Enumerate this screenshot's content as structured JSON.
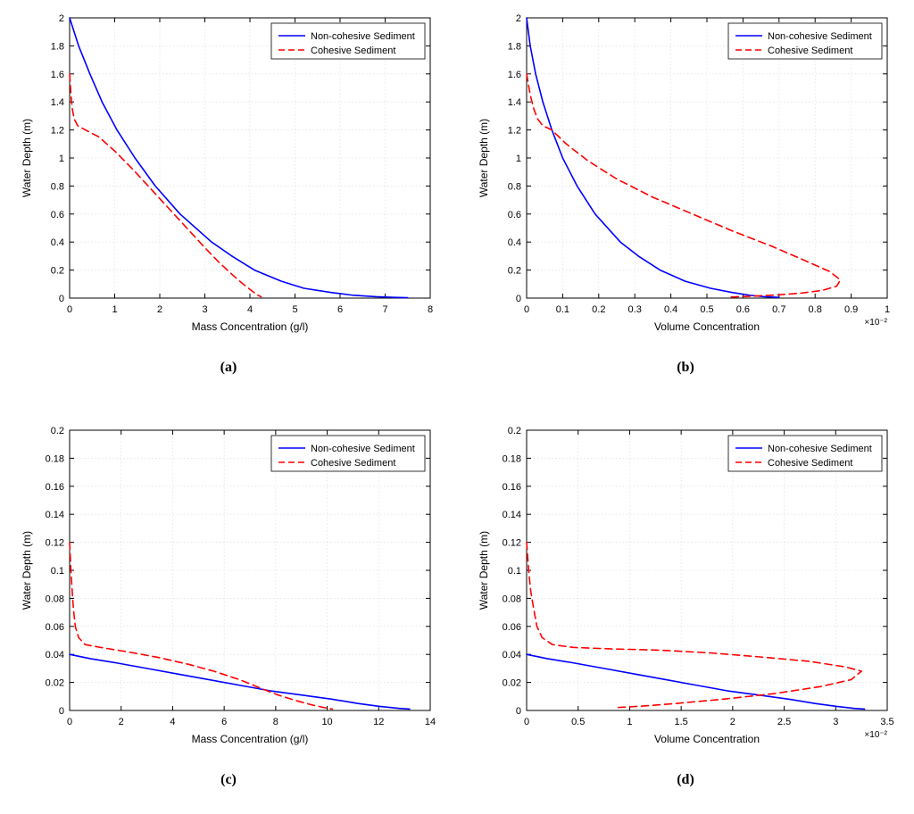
{
  "figure": {
    "background": "#ffffff",
    "panel_bg": "#ffffff",
    "axis_color": "#000000",
    "grid_color": "#d9d9d9",
    "tick_fontsize": 11,
    "label_fontsize": 12,
    "legend_fontsize": 11,
    "series_colors": {
      "noncohesive": "#0000ff",
      "cohesive": "#ff0000"
    },
    "series_styles": {
      "noncohesive": "solid",
      "cohesive": "dashed"
    },
    "legend_labels": {
      "noncohesive": "Non-cohesive Sediment",
      "cohesive": "Cohesive Sediment"
    },
    "line_width": 1.6
  },
  "panels": {
    "a": {
      "caption": "(a)",
      "xlabel": "Mass Concentration (g/l)",
      "ylabel": "Water Depth (m)",
      "xlim": [
        0,
        8
      ],
      "ylim": [
        0,
        2
      ],
      "xticks": [
        0,
        1,
        2,
        3,
        4,
        5,
        6,
        7,
        8
      ],
      "yticks": [
        0,
        0.2,
        0.4,
        0.6,
        0.8,
        1,
        1.2,
        1.4,
        1.6,
        1.8,
        2
      ],
      "exp_note": "",
      "series": {
        "noncohesive": [
          [
            0.0,
            2.0
          ],
          [
            0.2,
            1.8
          ],
          [
            0.45,
            1.6
          ],
          [
            0.72,
            1.4
          ],
          [
            1.05,
            1.2
          ],
          [
            1.45,
            1.0
          ],
          [
            1.9,
            0.8
          ],
          [
            2.45,
            0.6
          ],
          [
            3.15,
            0.4
          ],
          [
            3.6,
            0.3
          ],
          [
            4.1,
            0.2
          ],
          [
            4.7,
            0.12
          ],
          [
            5.2,
            0.07
          ],
          [
            5.8,
            0.04
          ],
          [
            6.3,
            0.02
          ],
          [
            6.8,
            0.01
          ],
          [
            7.2,
            0.005
          ],
          [
            7.5,
            0.003
          ]
        ],
        "cohesive": [
          [
            0.0,
            1.6
          ],
          [
            0.03,
            1.45
          ],
          [
            0.06,
            1.35
          ],
          [
            0.1,
            1.28
          ],
          [
            0.18,
            1.23
          ],
          [
            0.35,
            1.2
          ],
          [
            0.65,
            1.15
          ],
          [
            1.0,
            1.05
          ],
          [
            1.4,
            0.92
          ],
          [
            1.8,
            0.78
          ],
          [
            2.2,
            0.64
          ],
          [
            2.6,
            0.5
          ],
          [
            3.0,
            0.36
          ],
          [
            3.3,
            0.26
          ],
          [
            3.6,
            0.17
          ],
          [
            3.85,
            0.1
          ],
          [
            4.05,
            0.05
          ],
          [
            4.18,
            0.02
          ],
          [
            4.25,
            0.01
          ]
        ]
      }
    },
    "b": {
      "caption": "(b)",
      "xlabel": "Volume Concentration",
      "ylabel": "Water Depth (m)",
      "xlim": [
        0,
        1
      ],
      "ylim": [
        0,
        2
      ],
      "xticks": [
        0,
        0.1,
        0.2,
        0.3,
        0.4,
        0.5,
        0.6,
        0.7,
        0.8,
        0.9,
        1
      ],
      "yticks": [
        0,
        0.2,
        0.4,
        0.6,
        0.8,
        1,
        1.2,
        1.4,
        1.6,
        1.8,
        2
      ],
      "exp_note": "×10⁻²",
      "series": {
        "noncohesive": [
          [
            0.0,
            2.0
          ],
          [
            0.01,
            1.8
          ],
          [
            0.025,
            1.6
          ],
          [
            0.045,
            1.4
          ],
          [
            0.07,
            1.2
          ],
          [
            0.1,
            1.0
          ],
          [
            0.14,
            0.8
          ],
          [
            0.19,
            0.6
          ],
          [
            0.26,
            0.4
          ],
          [
            0.31,
            0.3
          ],
          [
            0.37,
            0.2
          ],
          [
            0.44,
            0.12
          ],
          [
            0.51,
            0.07
          ],
          [
            0.57,
            0.04
          ],
          [
            0.62,
            0.02
          ],
          [
            0.66,
            0.01
          ],
          [
            0.7,
            0.005
          ]
        ],
        "cohesive": [
          [
            0.0,
            1.6
          ],
          [
            0.01,
            1.45
          ],
          [
            0.02,
            1.35
          ],
          [
            0.03,
            1.28
          ],
          [
            0.045,
            1.23
          ],
          [
            0.07,
            1.2
          ],
          [
            0.11,
            1.1
          ],
          [
            0.17,
            0.98
          ],
          [
            0.25,
            0.85
          ],
          [
            0.35,
            0.72
          ],
          [
            0.46,
            0.6
          ],
          [
            0.57,
            0.48
          ],
          [
            0.68,
            0.37
          ],
          [
            0.77,
            0.27
          ],
          [
            0.84,
            0.19
          ],
          [
            0.87,
            0.13
          ],
          [
            0.86,
            0.085
          ],
          [
            0.82,
            0.055
          ],
          [
            0.76,
            0.035
          ],
          [
            0.69,
            0.022
          ],
          [
            0.62,
            0.013
          ],
          [
            0.56,
            0.007
          ]
        ]
      }
    },
    "c": {
      "caption": "(c)",
      "xlabel": "Mass Concentration (g/l)",
      "ylabel": "Water Depth (m)",
      "xlim": [
        0,
        14
      ],
      "ylim": [
        0,
        0.2
      ],
      "xticks": [
        0,
        2,
        4,
        6,
        8,
        10,
        12,
        14
      ],
      "yticks": [
        0,
        0.02,
        0.04,
        0.06,
        0.08,
        0.1,
        0.12,
        0.14,
        0.16,
        0.18,
        0.2
      ],
      "exp_note": "",
      "series": {
        "noncohesive": [
          [
            0.0,
            0.04
          ],
          [
            0.8,
            0.037
          ],
          [
            1.8,
            0.034
          ],
          [
            3.0,
            0.03
          ],
          [
            4.2,
            0.026
          ],
          [
            5.4,
            0.022
          ],
          [
            6.6,
            0.018
          ],
          [
            7.8,
            0.014
          ],
          [
            9.0,
            0.011
          ],
          [
            10.2,
            0.008
          ],
          [
            11.2,
            0.005
          ],
          [
            12.0,
            0.003
          ],
          [
            12.8,
            0.0015
          ],
          [
            13.2,
            0.001
          ]
        ],
        "cohesive": [
          [
            0.0,
            0.12
          ],
          [
            0.05,
            0.1
          ],
          [
            0.1,
            0.085
          ],
          [
            0.15,
            0.072
          ],
          [
            0.22,
            0.06
          ],
          [
            0.35,
            0.052
          ],
          [
            0.6,
            0.047
          ],
          [
            1.2,
            0.045
          ],
          [
            2.2,
            0.042
          ],
          [
            3.4,
            0.038
          ],
          [
            4.6,
            0.033
          ],
          [
            5.6,
            0.028
          ],
          [
            6.6,
            0.022
          ],
          [
            7.4,
            0.016
          ],
          [
            8.1,
            0.011
          ],
          [
            8.8,
            0.007
          ],
          [
            9.4,
            0.004
          ],
          [
            9.9,
            0.002
          ],
          [
            10.2,
            0.001
          ]
        ]
      }
    },
    "d": {
      "caption": "(d)",
      "xlabel": "Volume Concentration",
      "ylabel": "Water Depth (m)",
      "xlim": [
        0,
        3.5
      ],
      "ylim": [
        0,
        0.2
      ],
      "xticks": [
        0,
        0.5,
        1,
        1.5,
        2,
        2.5,
        3,
        3.5
      ],
      "yticks": [
        0,
        0.02,
        0.04,
        0.06,
        0.08,
        0.1,
        0.12,
        0.14,
        0.16,
        0.18,
        0.2
      ],
      "exp_note": "×10⁻²",
      "series": {
        "noncohesive": [
          [
            0.0,
            0.04
          ],
          [
            0.2,
            0.037
          ],
          [
            0.45,
            0.034
          ],
          [
            0.75,
            0.03
          ],
          [
            1.05,
            0.026
          ],
          [
            1.35,
            0.022
          ],
          [
            1.65,
            0.018
          ],
          [
            1.95,
            0.014
          ],
          [
            2.25,
            0.011
          ],
          [
            2.55,
            0.008
          ],
          [
            2.8,
            0.005
          ],
          [
            3.0,
            0.003
          ],
          [
            3.18,
            0.0015
          ],
          [
            3.28,
            0.001
          ]
        ],
        "cohesive": [
          [
            0.0,
            0.12
          ],
          [
            0.02,
            0.1
          ],
          [
            0.04,
            0.085
          ],
          [
            0.07,
            0.072
          ],
          [
            0.1,
            0.06
          ],
          [
            0.15,
            0.052
          ],
          [
            0.25,
            0.047
          ],
          [
            0.45,
            0.045
          ],
          [
            0.8,
            0.044
          ],
          [
            1.3,
            0.043
          ],
          [
            1.8,
            0.041
          ],
          [
            2.3,
            0.038
          ],
          [
            2.75,
            0.035
          ],
          [
            3.1,
            0.031
          ],
          [
            3.25,
            0.028
          ],
          [
            3.15,
            0.022
          ],
          [
            2.85,
            0.017
          ],
          [
            2.4,
            0.012
          ],
          [
            1.9,
            0.008
          ],
          [
            1.45,
            0.005
          ],
          [
            1.1,
            0.003
          ],
          [
            0.85,
            0.002
          ]
        ]
      }
    }
  }
}
